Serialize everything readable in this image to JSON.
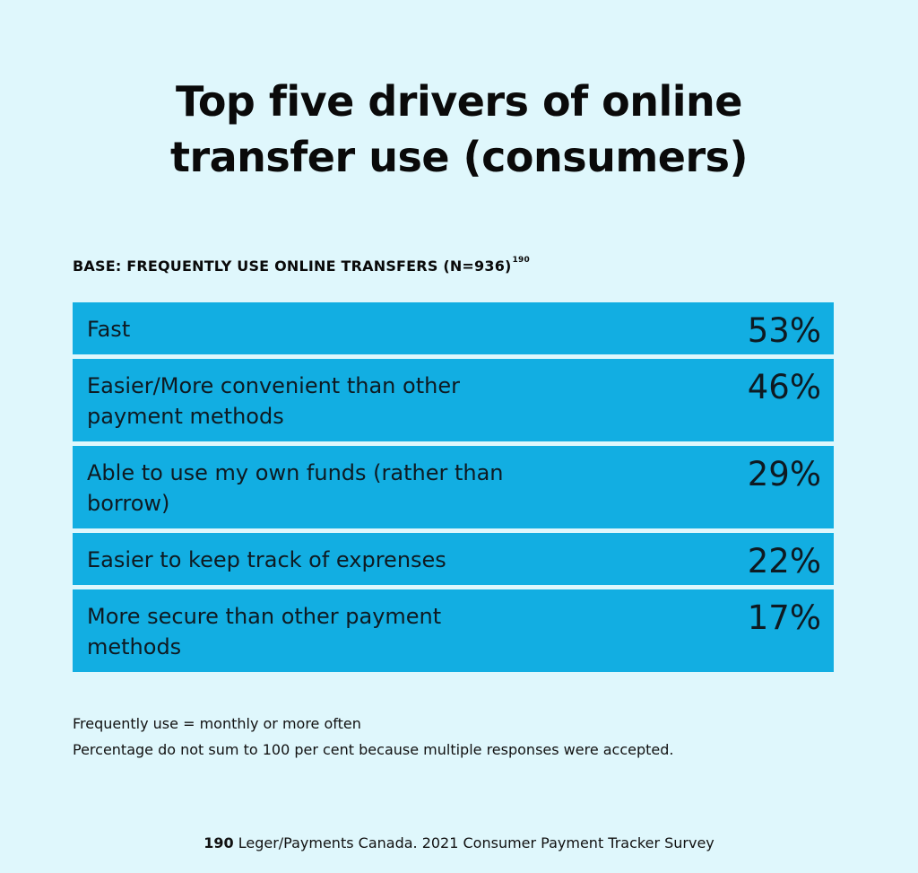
{
  "chart_data": {
    "type": "table",
    "title_lines": [
      "Top five drivers of online",
      "transfer use (consumers)"
    ],
    "base": "BASE: FREQUENTLY USE ONLINE TRANSFERS (N=936)",
    "base_ref": "190",
    "rows": [
      {
        "label": "Fast",
        "value": "53%",
        "lines": 1
      },
      {
        "label": "Easier/More convenient than other payment methods",
        "value": "46%",
        "lines": 2
      },
      {
        "label": "Able to use my own funds (rather than borrow)",
        "value": "29%",
        "lines": 2
      },
      {
        "label": "Easier to keep track of exprenses",
        "value": "22%",
        "lines": 1
      },
      {
        "label": "More secure than other payment methods",
        "value": "17%",
        "lines": 2
      }
    ]
  },
  "notes": [
    "Frequently use = monthly or more often",
    "Percentage do not sum to 100 per cent because multiple responses were accepted."
  ],
  "source": {
    "ref": "190",
    "text": " Leger/Payments Canada. 2021 Consumer Payment Tracker Survey"
  },
  "colors": {
    "background": "#dff7fc",
    "row_fill": "#12aee2",
    "text": "#111111"
  }
}
